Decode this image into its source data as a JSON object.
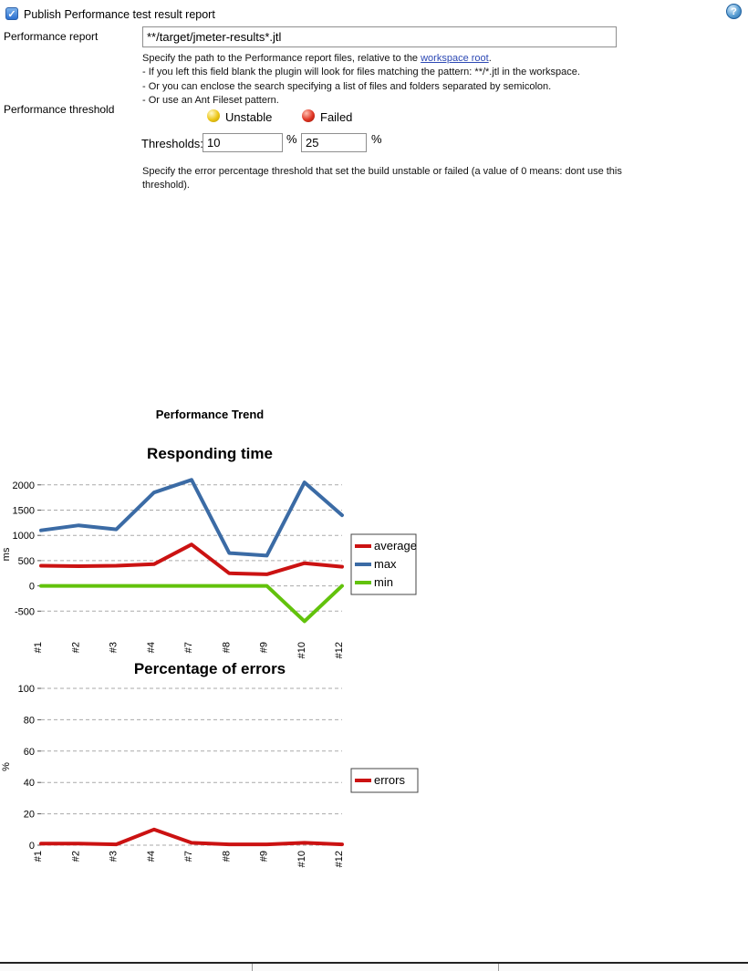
{
  "form": {
    "publish_label": "Publish Performance test result report",
    "report_label": "Performance report",
    "report_value": "**/target/jmeter-results*.jtl",
    "report_help": {
      "line1_prefix": "Specify the path to the Performance report files, relative to the ",
      "line1_link": "workspace root",
      "line1_suffix": ".",
      "line2": "- If you left this field blank the plugin will look for files matching the pattern: **/*.jtl in the workspace.",
      "line3": "- Or you can enclose the search specifying a list of files and folders separated by semicolon.",
      "line4": "- Or use an Ant Fileset pattern."
    },
    "threshold_label": "Performance threshold",
    "unstable_label": "Unstable",
    "failed_label": "Failed",
    "thresholds_label": "Thresholds:",
    "unstable_value": "10",
    "failed_value": "25",
    "percent1": "%",
    "percent2": "%",
    "threshold_help": "Specify the error percentage threshold that set the build unstable or failed (a value of 0 means: dont use this threshold)."
  },
  "trend": {
    "title": "Performance Trend"
  },
  "chart_data": [
    {
      "type": "line",
      "title": "Responding time",
      "xlabel": "",
      "ylabel": "ms",
      "categories": [
        "#1",
        "#2",
        "#3",
        "#4",
        "#7",
        "#8",
        "#9",
        "#10",
        "#12"
      ],
      "series": [
        {
          "name": "average",
          "color": "#cb1212",
          "values": [
            400,
            390,
            400,
            430,
            820,
            250,
            230,
            450,
            380
          ]
        },
        {
          "name": "max",
          "color": "#3b6ba5",
          "values": [
            1100,
            1200,
            1120,
            1850,
            2100,
            650,
            600,
            2050,
            1400
          ]
        },
        {
          "name": "min",
          "color": "#62c20c",
          "values": [
            0,
            0,
            0,
            0,
            0,
            0,
            0,
            -700,
            0
          ]
        }
      ],
      "ylim": [
        -1000,
        2250
      ],
      "yticks": [
        -500,
        0,
        500,
        1000,
        1500,
        2000
      ],
      "grid": true,
      "legend_position": "right"
    },
    {
      "type": "line",
      "title": "Percentage of errors",
      "xlabel": "",
      "ylabel": "%",
      "categories": [
        "#1",
        "#2",
        "#3",
        "#4",
        "#7",
        "#8",
        "#9",
        "#10",
        "#12"
      ],
      "series": [
        {
          "name": "errors",
          "color": "#cb1212",
          "values": [
            1,
            1,
            0.5,
            10,
            1.5,
            0.5,
            0.5,
            1.5,
            0.5
          ]
        }
      ],
      "ylim": [
        0,
        100
      ],
      "yticks": [
        0,
        20,
        40,
        60,
        80,
        100
      ],
      "grid": true,
      "legend_position": "right"
    }
  ]
}
